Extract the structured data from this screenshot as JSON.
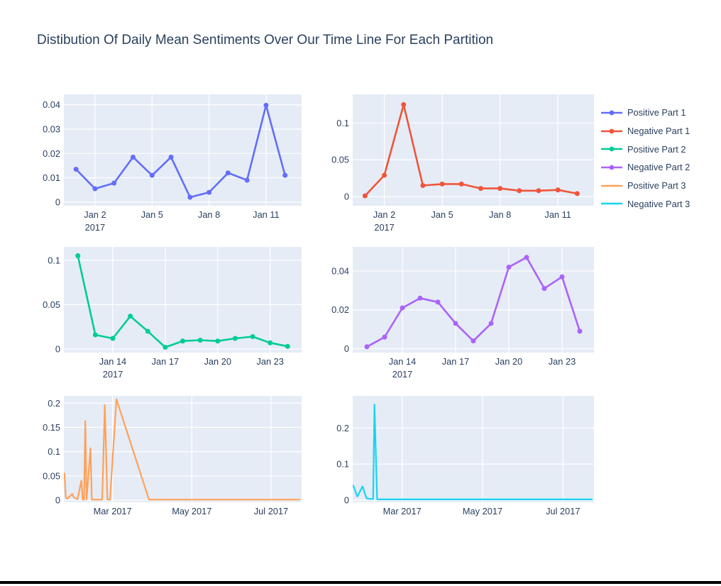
{
  "title": "Distibution Of Daily Mean Sentiments Over Our Time Line For Each Partition",
  "colors": {
    "text": "#2a3f5f",
    "plot_bg": "#E5ECF6",
    "grid": "#ffffff",
    "paper": "#ffffff",
    "window_border": "#000000",
    "series": {
      "positive_part_1": "#636EFA",
      "negative_part_1": "#EF553B",
      "positive_part_2": "#00CC96",
      "negative_part_2": "#AB63FA",
      "positive_part_3": "#FFA15A",
      "negative_part_3": "#19D3F3"
    }
  },
  "legend": {
    "position": "right",
    "items": [
      {
        "label": "Positive Part 1",
        "color": "#636EFA",
        "marker": true
      },
      {
        "label": "Negative Part 1",
        "color": "#EF553B",
        "marker": true
      },
      {
        "label": "Positive Part 2",
        "color": "#00CC96",
        "marker": true
      },
      {
        "label": "Negative Part 2",
        "color": "#AB63FA",
        "marker": true
      },
      {
        "label": "Positive Part 3",
        "color": "#FFA15A",
        "marker": false
      },
      {
        "label": "Negative Part 3",
        "color": "#19D3F3",
        "marker": false
      }
    ]
  },
  "chart_data": [
    {
      "type": "line",
      "name": "Positive Part 1",
      "color": "#636EFA",
      "markers": true,
      "grid": true,
      "x_unit": "day of January 2017",
      "x": [
        1,
        2,
        3,
        4,
        5,
        6,
        7,
        8,
        9,
        10,
        11,
        12
      ],
      "y": [
        0.0135,
        0.0055,
        0.0078,
        0.0185,
        0.011,
        0.0185,
        0.002,
        0.004,
        0.012,
        0.009,
        0.0398,
        0.011
      ],
      "xlim": [
        0.36,
        12.87
      ],
      "ylim": [
        -0.0015,
        0.0443
      ],
      "xticks": [
        [
          2,
          "Jan 2",
          "2017"
        ],
        [
          5,
          "Jan 5"
        ],
        [
          8,
          "Jan 8"
        ],
        [
          11,
          "Jan 11"
        ]
      ],
      "yticks": [
        [
          0,
          "0"
        ],
        [
          0.01,
          "0.01"
        ],
        [
          0.02,
          "0.02"
        ],
        [
          0.03,
          "0.03"
        ],
        [
          0.04,
          "0.04"
        ]
      ]
    },
    {
      "type": "line",
      "name": "Negative Part 1",
      "color": "#EF553B",
      "markers": true,
      "grid": true,
      "x_unit": "day of January 2017",
      "x": [
        1,
        2,
        3,
        4,
        5,
        6,
        7,
        8,
        9,
        10,
        11,
        12
      ],
      "y": [
        0.001,
        0.029,
        0.125,
        0.015,
        0.017,
        0.017,
        0.011,
        0.011,
        0.008,
        0.008,
        0.009,
        0.004
      ],
      "xlim": [
        0.36,
        12.87
      ],
      "ylim": [
        -0.0125,
        0.139
      ],
      "xticks": [
        [
          2,
          "Jan 2",
          "2017"
        ],
        [
          5,
          "Jan 5"
        ],
        [
          8,
          "Jan 8"
        ],
        [
          11,
          "Jan 11"
        ]
      ],
      "yticks": [
        [
          0,
          "0"
        ],
        [
          0.05,
          "0.05"
        ],
        [
          0.1,
          "0.1"
        ]
      ]
    },
    {
      "type": "line",
      "name": "Positive Part 2",
      "color": "#00CC96",
      "markers": true,
      "grid": true,
      "x_unit": "day of January 2017",
      "x": [
        12,
        13,
        14,
        15,
        16,
        17,
        18,
        19,
        20,
        21,
        22,
        23,
        24
      ],
      "y": [
        0.105,
        0.016,
        0.012,
        0.037,
        0.02,
        0.002,
        0.009,
        0.01,
        0.009,
        0.012,
        0.014,
        0.007,
        0.003
      ],
      "xlim": [
        11.2,
        24.8
      ],
      "ylim": [
        -0.004,
        0.115
      ],
      "xticks": [
        [
          14,
          "Jan 14",
          "2017"
        ],
        [
          17,
          "Jan 17"
        ],
        [
          20,
          "Jan 20"
        ],
        [
          23,
          "Jan 23"
        ]
      ],
      "yticks": [
        [
          0,
          "0"
        ],
        [
          0.05,
          "0.05"
        ],
        [
          0.1,
          "0.1"
        ]
      ]
    },
    {
      "type": "line",
      "name": "Negative Part 2",
      "color": "#AB63FA",
      "markers": true,
      "grid": true,
      "x_unit": "day of January 2017",
      "x": [
        12,
        13,
        14,
        15,
        16,
        17,
        18,
        19,
        20,
        21,
        22,
        23,
        24
      ],
      "y": [
        0.001,
        0.006,
        0.021,
        0.026,
        0.024,
        0.013,
        0.004,
        0.013,
        0.042,
        0.047,
        0.031,
        0.037,
        0.009
      ],
      "xlim": [
        11.2,
        24.8
      ],
      "ylim": [
        -0.002,
        0.0524
      ],
      "xticks": [
        [
          14,
          "Jan 14",
          "2017"
        ],
        [
          17,
          "Jan 17"
        ],
        [
          20,
          "Jan 20"
        ],
        [
          23,
          "Jan 23"
        ]
      ],
      "yticks": [
        [
          0,
          "0"
        ],
        [
          0.02,
          "0.02"
        ],
        [
          0.04,
          "0.04"
        ]
      ]
    },
    {
      "type": "line",
      "name": "Positive Part 3",
      "color": "#FFA15A",
      "markers": false,
      "grid": true,
      "x_unit": "day of year 2017",
      "x": [
        23,
        24,
        25,
        28,
        29,
        30,
        33,
        36,
        37,
        38,
        39,
        40,
        43,
        44,
        52,
        54,
        56,
        58,
        63,
        88,
        204
      ],
      "y": [
        0.055,
        0.006,
        0.003,
        0.01,
        0.013,
        0.006,
        0.002,
        0.04,
        0.001,
        0.001,
        0.163,
        0.001,
        0.107,
        0.001,
        0.001,
        0.196,
        0.001,
        0.001,
        0.208,
        0.001,
        0.001
      ],
      "xlim": [
        22.5,
        205.5
      ],
      "ylim": [
        -0.0045,
        0.215
      ],
      "xticks": [
        [
          60,
          "Mar 2017"
        ],
        [
          121,
          "May 2017"
        ],
        [
          182,
          "Jul 2017"
        ]
      ],
      "yticks": [
        [
          0,
          "0"
        ],
        [
          0.05,
          "0.05"
        ],
        [
          0.1,
          "0.1"
        ],
        [
          0.15,
          "0.15"
        ],
        [
          0.2,
          "0.2"
        ]
      ]
    },
    {
      "type": "line",
      "name": "Negative Part 3",
      "color": "#19D3F3",
      "markers": false,
      "grid": true,
      "x_unit": "day of year 2017",
      "x": [
        23,
        26,
        30,
        33,
        36,
        38,
        39,
        41,
        204
      ],
      "y": [
        0.04,
        0.01,
        0.038,
        0.005,
        0.003,
        0.003,
        0.265,
        0.002,
        0.002
      ],
      "xlim": [
        22.5,
        205.5
      ],
      "ylim": [
        -0.006,
        0.289
      ],
      "xticks": [
        [
          60,
          "Mar 2017"
        ],
        [
          121,
          "May 2017"
        ],
        [
          182,
          "Jul 2017"
        ]
      ],
      "yticks": [
        [
          0,
          "0"
        ],
        [
          0.1,
          "0.1"
        ],
        [
          0.2,
          "0.2"
        ]
      ]
    }
  ]
}
